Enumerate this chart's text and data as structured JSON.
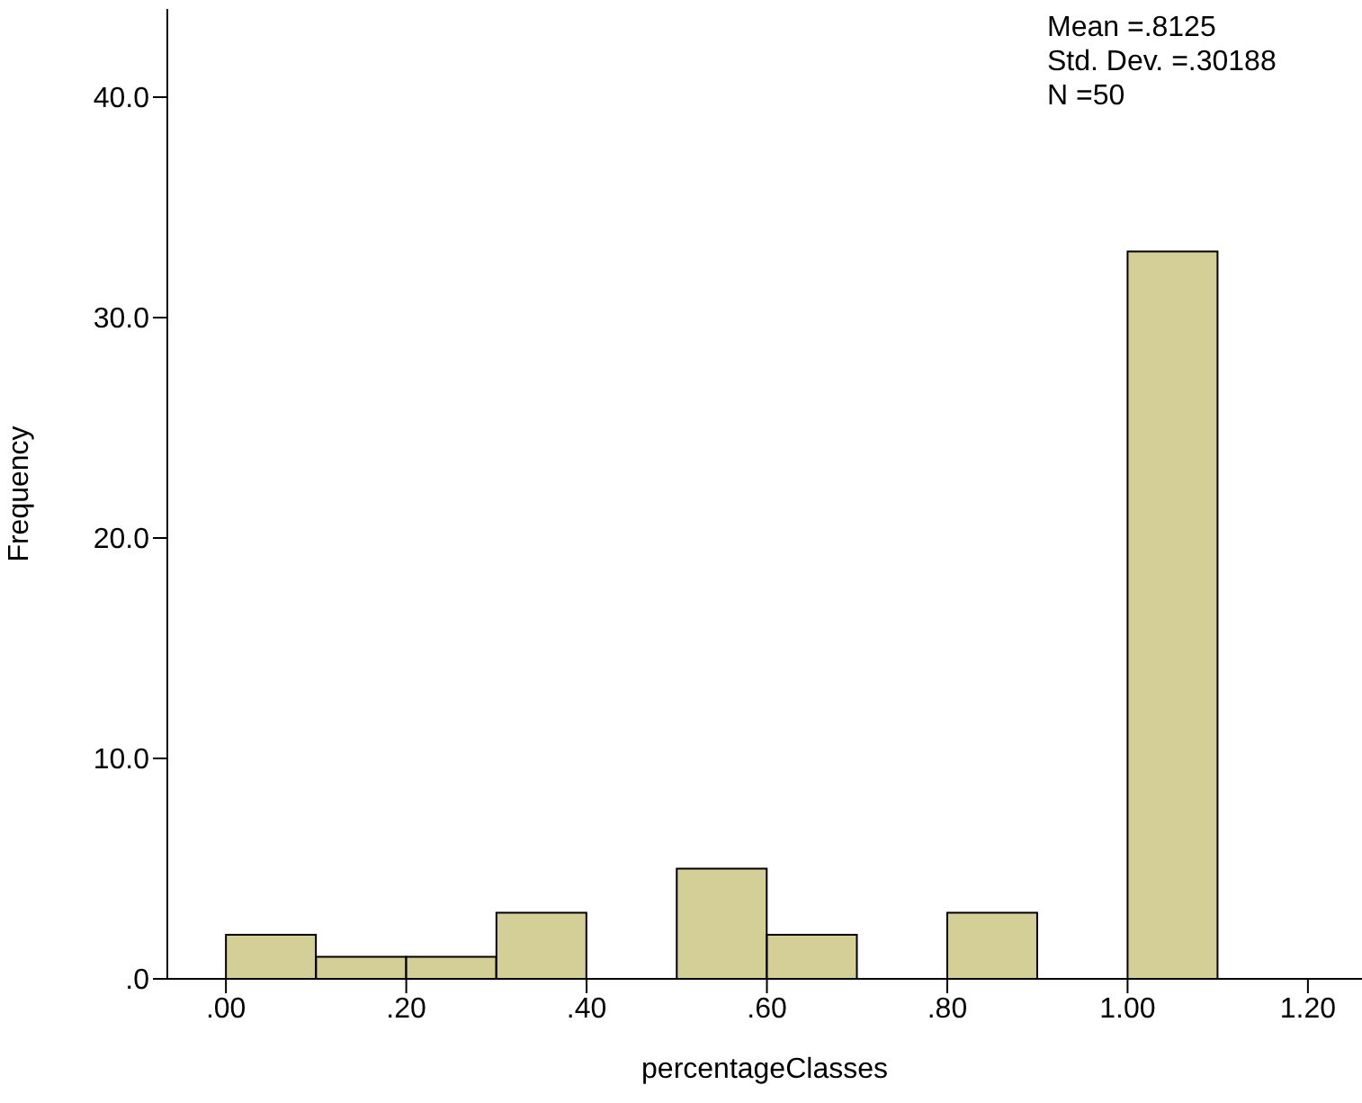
{
  "chart_data": {
    "type": "histogram",
    "xlabel": "percentageClasses",
    "ylabel": "Frequency",
    "bins": [
      0,
      0.1,
      0.2,
      0.3,
      0.4,
      0.5,
      0.6,
      0.7,
      0.8,
      0.9,
      1.0,
      1.1
    ],
    "values": [
      2,
      1,
      1,
      3,
      0,
      5,
      2,
      0,
      3,
      0,
      33
    ],
    "color": "#d4cf96",
    "xlim": [
      -0.065,
      1.26
    ],
    "xticks": [
      {
        "value": 0,
        "label": ".00"
      },
      {
        "value": 0.2,
        "label": ".20"
      },
      {
        "value": 0.4,
        "label": ".40"
      },
      {
        "value": 0.6,
        "label": ".60"
      },
      {
        "value": 0.8,
        "label": ".80"
      },
      {
        "value": 1.0,
        "label": "1.00"
      },
      {
        "value": 1.2,
        "label": "1.20"
      }
    ],
    "ylim": [
      0,
      44
    ],
    "yticks": [
      {
        "value": 0,
        "label": ".0"
      },
      {
        "value": 10,
        "label": "10.0"
      },
      {
        "value": 20,
        "label": "20.0"
      },
      {
        "value": 30,
        "label": "30.0"
      },
      {
        "value": 40,
        "label": "40.0"
      }
    ],
    "grid": false,
    "annotations": [
      "Mean =.8125",
      "Std. Dev. =.30188",
      "N =50"
    ]
  }
}
